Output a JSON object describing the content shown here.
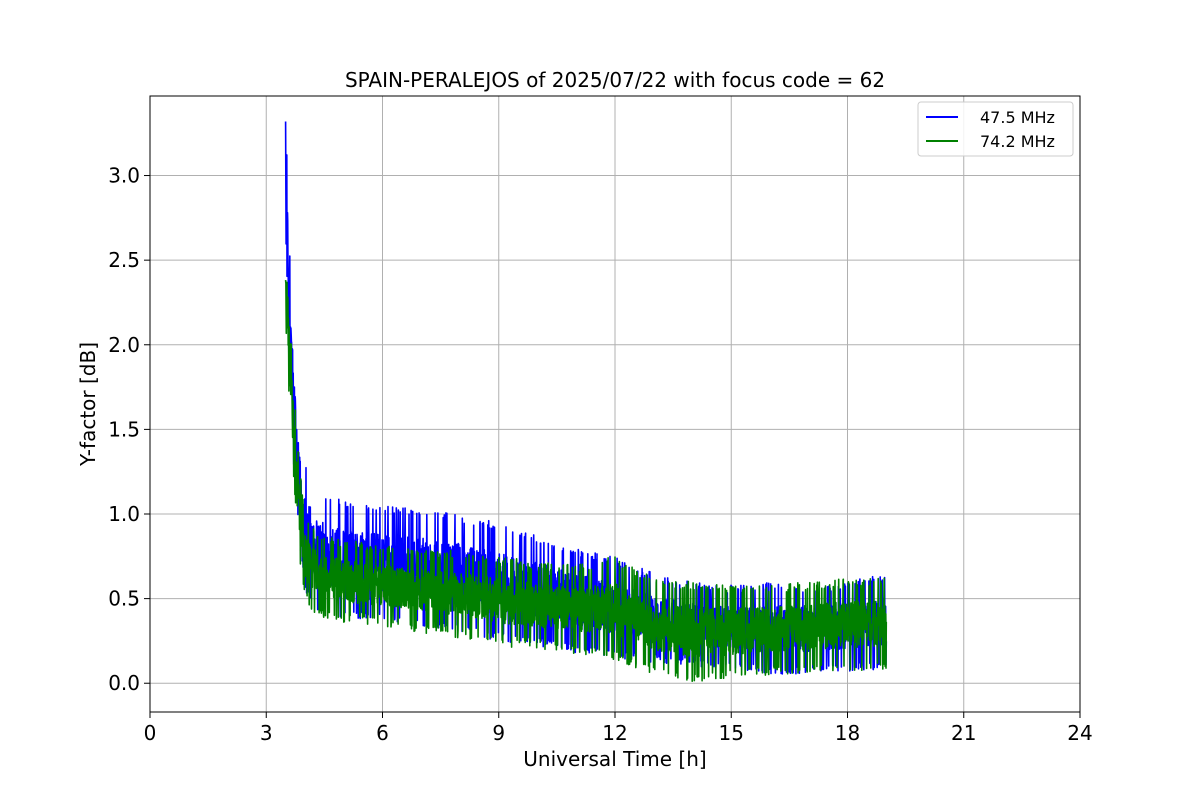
{
  "chart_data": {
    "type": "line",
    "title": "SPAIN-PERALEJOS of 2025/07/22 with focus code = 62",
    "xlabel": "Universal Time [h]",
    "ylabel": "Y-factor [dB]",
    "xlim": [
      0,
      24
    ],
    "ylim": [
      -0.17,
      3.47
    ],
    "xticks": [
      0,
      3,
      6,
      9,
      12,
      15,
      18,
      21,
      24
    ],
    "xtick_labels": [
      "0",
      "3",
      "6",
      "9",
      "12",
      "15",
      "18",
      "21",
      "24"
    ],
    "yticks": [
      0.0,
      0.5,
      1.0,
      1.5,
      2.0,
      2.5,
      3.0
    ],
    "ytick_labels": [
      "0.0",
      "0.5",
      "1.0",
      "1.5",
      "2.0",
      "2.5",
      "3.0"
    ],
    "grid": true,
    "legend_position": "top-right",
    "colors": {
      "series_1": "#0000ff",
      "series_2": "#008000",
      "grid": "#b0b0b0"
    },
    "series": [
      {
        "name": "47.5 MHz",
        "color": "#0000ff",
        "x_range": [
          3.5,
          19.0
        ],
        "envelope": {
          "x": [
            3.5,
            3.55,
            3.6,
            3.7,
            3.8,
            3.9,
            4.0,
            4.2,
            4.5,
            5.0,
            6.0,
            7.0,
            8.0,
            9.0,
            10.0,
            11.0,
            12.0,
            13.0,
            14.0,
            15.0,
            16.0,
            17.0,
            18.0,
            19.0
          ],
          "upper": [
            3.32,
            3.05,
            2.6,
            2.1,
            1.7,
            1.45,
            1.3,
            1.22,
            1.12,
            1.08,
            1.05,
            1.03,
            1.0,
            0.95,
            0.88,
            0.8,
            0.75,
            0.65,
            0.6,
            0.58,
            0.6,
            0.58,
            0.6,
            0.65
          ],
          "lower": [
            2.4,
            2.0,
            1.7,
            1.3,
            1.0,
            0.75,
            0.55,
            0.45,
            0.4,
            0.38,
            0.37,
            0.34,
            0.3,
            0.25,
            0.22,
            0.18,
            0.15,
            0.12,
            0.1,
            0.08,
            0.05,
            0.05,
            0.07,
            0.08
          ]
        }
      },
      {
        "name": "74.2 MHz",
        "color": "#008000",
        "x_range": [
          3.5,
          19.0
        ],
        "envelope": {
          "x": [
            3.5,
            3.55,
            3.6,
            3.7,
            3.8,
            3.9,
            4.0,
            4.2,
            4.5,
            5.0,
            6.0,
            7.0,
            8.0,
            9.0,
            10.0,
            11.0,
            12.0,
            13.0,
            14.0,
            15.0,
            16.0,
            17.0,
            18.0,
            19.0
          ],
          "upper": [
            2.6,
            2.5,
            2.2,
            1.8,
            1.45,
            1.2,
            1.0,
            0.92,
            0.88,
            0.85,
            0.82,
            0.8,
            0.78,
            0.75,
            0.72,
            0.7,
            0.75,
            0.62,
            0.6,
            0.58,
            0.58,
            0.6,
            0.62,
            0.62
          ],
          "lower": [
            2.1,
            1.9,
            1.6,
            1.2,
            0.9,
            0.65,
            0.5,
            0.42,
            0.38,
            0.36,
            0.33,
            0.3,
            0.26,
            0.22,
            0.2,
            0.17,
            0.14,
            0.05,
            0.0,
            0.03,
            0.05,
            0.06,
            0.07,
            0.08
          ]
        }
      }
    ]
  }
}
